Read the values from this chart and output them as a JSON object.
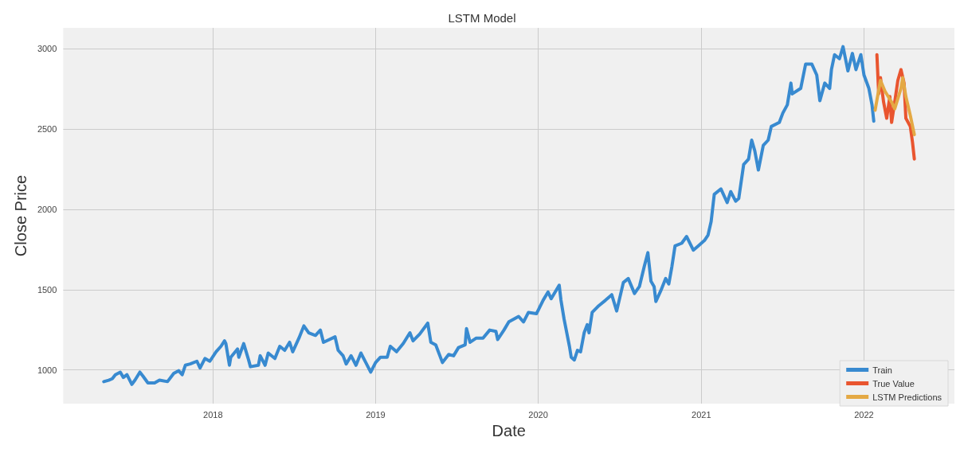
{
  "chart_data": {
    "type": "line",
    "title": "LSTM Model",
    "xlabel": "Date",
    "ylabel": "Close Price",
    "xlim": [
      "2017-01-30",
      "2022-07-23"
    ],
    "ylim": [
      790,
      3130
    ],
    "xticks": [
      "2018",
      "2019",
      "2020",
      "2021",
      "2022"
    ],
    "yticks": [
      1000,
      1500,
      2000,
      2500,
      3000
    ],
    "grid": true,
    "legend": "bottom right",
    "marker": "none",
    "line_style": "solid",
    "series": [
      {
        "name": "Train",
        "color": "#388ad0",
        "x": [
          "2017-05-01",
          "2017-05-12",
          "2017-05-20",
          "2017-05-27",
          "2017-06-07",
          "2017-06-14",
          "2017-06-22",
          "2017-07-03",
          "2017-07-10",
          "2017-07-21",
          "2017-07-28",
          "2017-08-08",
          "2017-08-23",
          "2017-09-03",
          "2017-09-21",
          "2017-10-05",
          "2017-10-16",
          "2017-10-24",
          "2017-10-31",
          "2017-11-11",
          "2017-11-26",
          "2017-12-03",
          "2017-12-14",
          "2017-12-25",
          "2018-01-08",
          "2018-01-19",
          "2018-01-27",
          "2018-01-30",
          "2018-02-07",
          "2018-02-10",
          "2018-02-25",
          "2018-02-28",
          "2018-03-11",
          "2018-03-22",
          "2018-03-26",
          "2018-04-13",
          "2018-04-17",
          "2018-04-28",
          "2018-05-05",
          "2018-05-20",
          "2018-05-31",
          "2018-06-11",
          "2018-06-22",
          "2018-06-29",
          "2018-07-13",
          "2018-07-24",
          "2018-08-04",
          "2018-08-19",
          "2018-08-30",
          "2018-09-06",
          "2018-10-02",
          "2018-10-09",
          "2018-10-20",
          "2018-10-27",
          "2018-11-07",
          "2018-11-18",
          "2018-11-29",
          "2018-12-10",
          "2018-12-21",
          "2019-01-01",
          "2019-01-12",
          "2019-01-27",
          "2019-02-03",
          "2019-02-17",
          "2019-03-04",
          "2019-03-19",
          "2019-03-26",
          "2019-04-10",
          "2019-04-28",
          "2019-05-05",
          "2019-05-16",
          "2019-05-31",
          "2019-06-14",
          "2019-06-25",
          "2019-07-06",
          "2019-07-21",
          "2019-07-24",
          "2019-08-01",
          "2019-08-15",
          "2019-08-30",
          "2019-09-14",
          "2019-09-28",
          "2019-10-02",
          "2019-10-16",
          "2019-10-27",
          "2019-11-18",
          "2019-11-29",
          "2019-12-10",
          "2019-12-28",
          "2020-01-12",
          "2020-01-23",
          "2020-01-30",
          "2020-02-17",
          "2020-02-21",
          "2020-02-28",
          "2020-03-11",
          "2020-03-15",
          "2020-03-22",
          "2020-03-29",
          "2020-04-05",
          "2020-04-13",
          "2020-04-20",
          "2020-04-24",
          "2020-05-01",
          "2020-05-16",
          "2020-05-31",
          "2020-06-14",
          "2020-06-25",
          "2020-07-10",
          "2020-07-21",
          "2020-08-04",
          "2020-08-15",
          "2020-08-26",
          "2020-09-03",
          "2020-09-10",
          "2020-09-17",
          "2020-09-21",
          "2020-10-02",
          "2020-10-13",
          "2020-10-20",
          "2020-10-27",
          "2020-11-03",
          "2020-11-18",
          "2020-11-29",
          "2020-12-14",
          "2020-12-25",
          "2021-01-08",
          "2021-01-16",
          "2021-01-23",
          "2021-01-30",
          "2021-02-14",
          "2021-02-28",
          "2021-03-08",
          "2021-03-19",
          "2021-03-26",
          "2021-04-06",
          "2021-04-17",
          "2021-04-24",
          "2021-05-01",
          "2021-05-09",
          "2021-05-20",
          "2021-05-31",
          "2021-06-07",
          "2021-06-25",
          "2021-07-03",
          "2021-07-13",
          "2021-07-21",
          "2021-07-24",
          "2021-08-12",
          "2021-08-23",
          "2021-09-06",
          "2021-09-17",
          "2021-09-24",
          "2021-10-05",
          "2021-10-16",
          "2021-10-20",
          "2021-10-27",
          "2021-11-07",
          "2021-11-15",
          "2021-11-26",
          "2021-12-06",
          "2021-12-14",
          "2021-12-25",
          "2022-01-01",
          "2022-01-12",
          "2022-01-19",
          "2022-01-23"
        ],
        "values": [
          927,
          936,
          945,
          970,
          986,
          953,
          970,
          910,
          936,
          986,
          961,
          919,
          919,
          936,
          927,
          978,
          995,
          970,
          1029,
          1037,
          1054,
          1012,
          1071,
          1054,
          1113,
          1147,
          1181,
          1164,
          1029,
          1079,
          1130,
          1079,
          1164,
          1062,
          1020,
          1029,
          1088,
          1029,
          1105,
          1071,
          1147,
          1122,
          1172,
          1113,
          1198,
          1274,
          1231,
          1215,
          1248,
          1172,
          1206,
          1122,
          1088,
          1037,
          1088,
          1029,
          1105,
          1046,
          986,
          1046,
          1079,
          1079,
          1147,
          1113,
          1164,
          1231,
          1181,
          1223,
          1291,
          1172,
          1156,
          1046,
          1096,
          1088,
          1139,
          1156,
          1257,
          1172,
          1198,
          1198,
          1248,
          1240,
          1189,
          1248,
          1299,
          1333,
          1299,
          1358,
          1350,
          1434,
          1485,
          1443,
          1527,
          1434,
          1316,
          1147,
          1079,
          1062,
          1122,
          1113,
          1231,
          1282,
          1231,
          1358,
          1400,
          1434,
          1468,
          1367,
          1544,
          1569,
          1476,
          1519,
          1645,
          1730,
          1552,
          1519,
          1426,
          1493,
          1569,
          1535,
          1645,
          1772,
          1789,
          1831,
          1746,
          1772,
          1806,
          1839,
          1924,
          2093,
          2127,
          2042,
          2110,
          2051,
          2068,
          2279,
          2313,
          2431,
          2364,
          2245,
          2398,
          2431,
          2516,
          2541,
          2600,
          2651,
          2786,
          2719,
          2753,
          2904,
          2904,
          2836,
          2676,
          2786,
          2753,
          2870,
          2963,
          2938,
          3013,
          2862,
          2971,
          2870,
          2963,
          2836,
          2753,
          2651,
          2549
        ]
      },
      {
        "name": "True Value",
        "color": "#e9552f",
        "x": [
          "2022-01-30",
          "2022-02-03",
          "2022-02-07",
          "2022-02-14",
          "2022-02-21",
          "2022-02-28",
          "2022-03-04",
          "2022-03-11",
          "2022-03-18",
          "2022-03-25",
          "2022-04-01",
          "2022-04-05",
          "2022-04-15",
          "2022-04-20",
          "2022-04-24"
        ],
        "values": [
          2963,
          2719,
          2820,
          2668,
          2567,
          2702,
          2541,
          2668,
          2803,
          2870,
          2786,
          2567,
          2516,
          2415,
          2313
        ]
      },
      {
        "name": "LSTM Predictions",
        "color": "#e4a944",
        "x": [
          "2022-01-26",
          "2022-02-07",
          "2022-02-17",
          "2022-03-04",
          "2022-03-11",
          "2022-03-25",
          "2022-03-29",
          "2022-04-05",
          "2022-04-15",
          "2022-04-24"
        ],
        "values": [
          2617,
          2803,
          2736,
          2668,
          2626,
          2753,
          2820,
          2702,
          2584,
          2465
        ]
      }
    ]
  }
}
